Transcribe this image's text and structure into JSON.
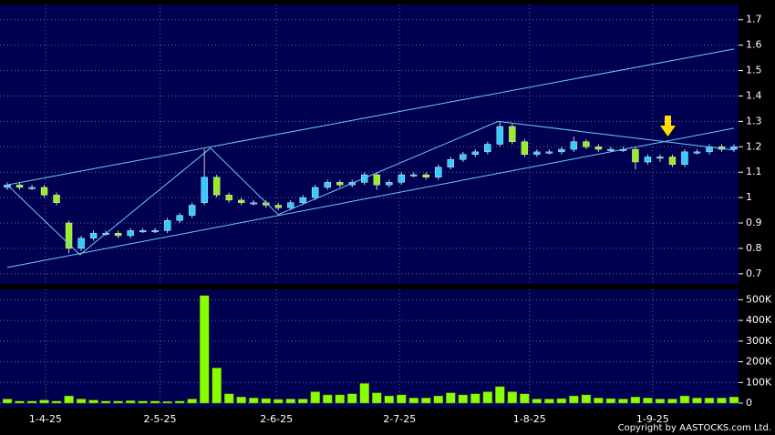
{
  "chart_data": [
    {
      "type": "candlestick",
      "x": [
        0,
        1,
        2,
        3,
        4,
        5,
        6,
        7,
        8,
        9,
        10,
        11,
        12,
        13,
        14,
        15,
        16,
        17,
        18,
        19,
        20,
        21,
        22,
        23,
        24,
        25,
        26,
        27,
        28,
        29,
        30,
        31,
        32,
        33,
        34,
        35,
        36,
        37,
        38,
        39,
        40,
        41,
        42,
        43,
        44,
        45,
        46,
        47,
        48,
        49,
        50,
        51,
        52,
        53,
        54,
        55,
        56,
        57,
        58,
        59
      ],
      "open": [
        1.04,
        1.05,
        1.04,
        1.04,
        1.01,
        0.9,
        0.8,
        0.84,
        0.86,
        0.86,
        0.85,
        0.87,
        0.87,
        0.87,
        0.91,
        0.93,
        0.98,
        1.08,
        1.01,
        0.99,
        0.98,
        0.98,
        0.97,
        0.96,
        0.98,
        1.0,
        1.04,
        1.06,
        1.05,
        1.06,
        1.09,
        1.05,
        1.06,
        1.09,
        1.09,
        1.08,
        1.12,
        1.15,
        1.17,
        1.18,
        1.21,
        1.28,
        1.22,
        1.17,
        1.18,
        1.18,
        1.19,
        1.22,
        1.2,
        1.19,
        1.19,
        1.19,
        1.14,
        1.16,
        1.16,
        1.13,
        1.18,
        1.18,
        1.2,
        1.19
      ],
      "high": [
        1.06,
        1.06,
        1.05,
        1.05,
        1.02,
        0.91,
        0.85,
        0.87,
        0.87,
        0.87,
        0.88,
        0.88,
        0.88,
        0.92,
        0.94,
        0.98,
        1.19,
        1.09,
        1.02,
        1.0,
        0.99,
        0.99,
        0.98,
        0.99,
        1.01,
        1.05,
        1.07,
        1.07,
        1.07,
        1.1,
        1.1,
        1.07,
        1.1,
        1.1,
        1.1,
        1.13,
        1.16,
        1.18,
        1.19,
        1.22,
        1.3,
        1.29,
        1.23,
        1.19,
        1.19,
        1.2,
        1.24,
        1.23,
        1.21,
        1.2,
        1.2,
        1.2,
        1.17,
        1.17,
        1.17,
        1.19,
        1.19,
        1.21,
        1.21,
        1.21
      ],
      "low": [
        1.03,
        1.03,
        1.03,
        1.0,
        0.97,
        0.78,
        0.79,
        0.83,
        0.85,
        0.84,
        0.84,
        0.86,
        0.86,
        0.86,
        0.9,
        0.92,
        0.97,
        1.0,
        0.98,
        0.97,
        0.97,
        0.96,
        0.95,
        0.95,
        0.97,
        0.99,
        1.03,
        1.04,
        1.04,
        1.05,
        1.03,
        1.04,
        1.05,
        1.08,
        1.07,
        1.07,
        1.11,
        1.14,
        1.16,
        1.17,
        1.2,
        1.21,
        1.16,
        1.16,
        1.17,
        1.17,
        1.18,
        1.19,
        1.18,
        1.18,
        1.18,
        1.11,
        1.13,
        1.14,
        1.12,
        1.12,
        1.17,
        1.17,
        1.18,
        1.18
      ],
      "close": [
        1.05,
        1.04,
        1.04,
        1.01,
        0.98,
        0.8,
        0.84,
        0.86,
        0.86,
        0.85,
        0.87,
        0.87,
        0.87,
        0.91,
        0.93,
        0.97,
        1.08,
        1.01,
        0.99,
        0.98,
        0.98,
        0.97,
        0.96,
        0.98,
        1.0,
        1.04,
        1.06,
        1.05,
        1.06,
        1.09,
        1.05,
        1.06,
        1.09,
        1.09,
        1.08,
        1.12,
        1.15,
        1.17,
        1.18,
        1.21,
        1.28,
        1.22,
        1.17,
        1.18,
        1.18,
        1.19,
        1.22,
        1.2,
        1.19,
        1.19,
        1.19,
        1.14,
        1.16,
        1.16,
        1.13,
        1.18,
        1.18,
        1.2,
        1.19,
        1.2
      ],
      "up_color": "#33ccff",
      "down_color": "#99ee22",
      "xlim": [
        0,
        59
      ],
      "ylim": [
        0.66,
        1.76
      ],
      "yticks": [
        0.7,
        0.8,
        0.9,
        1,
        1.1,
        1.2,
        1.3,
        1.4,
        1.5,
        1.6,
        1.7
      ],
      "trendlines": [
        {
          "x": [
            0,
            59
          ],
          "y": [
            1.05,
            1.585
          ]
        },
        {
          "x": [
            0,
            59
          ],
          "y": [
            0.725,
            1.273
          ]
        },
        {
          "x": [
            0,
            5.9,
            16.5,
            22,
            39.85,
            59
          ],
          "y": [
            1.05,
            0.775,
            1.195,
            0.933,
            1.3,
            1.187
          ]
        }
      ],
      "trendline_color": "#66ccff",
      "grid": true
    },
    {
      "type": "bar",
      "x": [
        0,
        1,
        2,
        3,
        4,
        5,
        6,
        7,
        8,
        9,
        10,
        11,
        12,
        13,
        14,
        15,
        16,
        17,
        18,
        19,
        20,
        21,
        22,
        23,
        24,
        25,
        26,
        27,
        28,
        29,
        30,
        31,
        32,
        33,
        34,
        35,
        36,
        37,
        38,
        39,
        40,
        41,
        42,
        43,
        44,
        45,
        46,
        47,
        48,
        49,
        50,
        51,
        52,
        53,
        54,
        55,
        56,
        57,
        58,
        59
      ],
      "values": [
        20000,
        10000,
        10000,
        15000,
        10000,
        35000,
        20000,
        15000,
        10000,
        10000,
        12000,
        10000,
        10000,
        8000,
        10000,
        20000,
        520000,
        170000,
        45000,
        30000,
        25000,
        22000,
        18000,
        20000,
        20000,
        55000,
        40000,
        40000,
        45000,
        95000,
        50000,
        35000,
        40000,
        25000,
        25000,
        35000,
        50000,
        40000,
        45000,
        55000,
        80000,
        55000,
        45000,
        20000,
        20000,
        22000,
        35000,
        40000,
        25000,
        22000,
        20000,
        30000,
        25000,
        20000,
        20000,
        35000,
        25000,
        25000,
        25000,
        30000
      ],
      "color": "#88ff00",
      "xlim": [
        0,
        59
      ],
      "ylim": [
        0,
        550000
      ],
      "yticks": [
        0,
        {
          "value": 100000,
          "label": "100K"
        },
        {
          "value": 200000,
          "label": "200K"
        },
        {
          "value": 300000,
          "label": "300K"
        },
        {
          "value": 400000,
          "label": "400K"
        },
        {
          "value": 500000,
          "label": "500K"
        }
      ],
      "xticks": [
        {
          "value": 3.1,
          "label": "1-4-25"
        },
        {
          "value": 12.4,
          "label": "2-5-25"
        },
        {
          "value": 21.85,
          "label": "2-6-25"
        },
        {
          "value": 31.85,
          "label": "2-7-25"
        },
        {
          "value": 42.4,
          "label": "1-8-25"
        },
        {
          "value": 52.4,
          "label": "1-9-25"
        }
      ],
      "grid": true
    }
  ],
  "footer": {
    "copyright": "Copyright by AASTOCKS.com Ltd."
  }
}
